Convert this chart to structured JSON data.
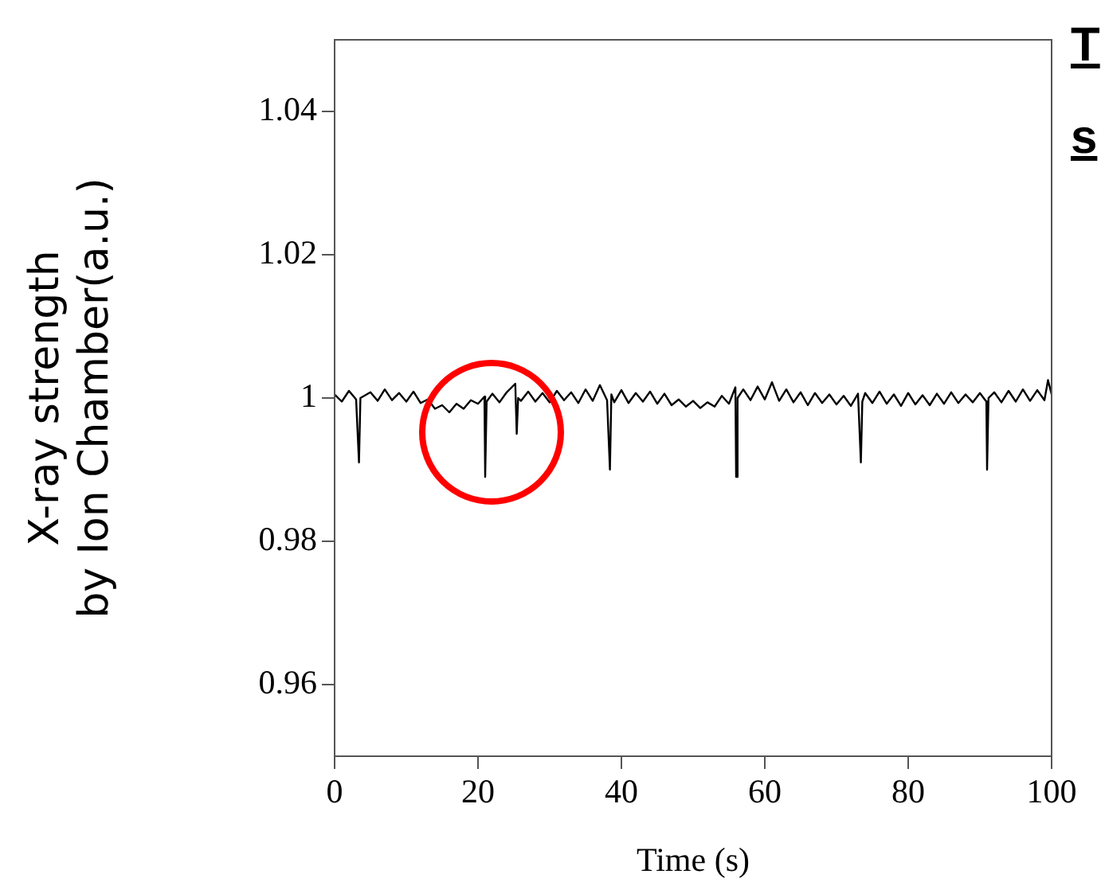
{
  "chart_data": {
    "type": "line",
    "xlabel": "Time (s)",
    "ylabel": "X-ray strength\nby Ion Chamber(a.u.)",
    "x": [
      0,
      1,
      2,
      3,
      3.4,
      3.6,
      5,
      6,
      7,
      8,
      9,
      10,
      11,
      12,
      13,
      14,
      15,
      16,
      17,
      18,
      19,
      20,
      20.9,
      21,
      21.2,
      22,
      23,
      24,
      25.2,
      25.4,
      25.6,
      26,
      27,
      28,
      29,
      30,
      31,
      32,
      33,
      34,
      35,
      36,
      37,
      38,
      38.4,
      38.6,
      39,
      40,
      41,
      42,
      43,
      44,
      45,
      46,
      47,
      48,
      49,
      50,
      51,
      52,
      53,
      54,
      55,
      55.9,
      56,
      56.2,
      57,
      58,
      59,
      60,
      61,
      62,
      63,
      64,
      65,
      66,
      67,
      68,
      69,
      70,
      71,
      72,
      73,
      73.4,
      73.6,
      74,
      75,
      76,
      77,
      78,
      79,
      80,
      81,
      82,
      83,
      84,
      85,
      86,
      87,
      88,
      89,
      90,
      90.9,
      91,
      91.2,
      92,
      93,
      94,
      95,
      96,
      97,
      98,
      99,
      99.5,
      100
    ],
    "series": [
      {
        "color": "#000000",
        "values": [
          1.0005,
          0.9995,
          1.001,
          0.9998,
          0.991,
          1.0,
          1.0008,
          0.9996,
          1.0012,
          0.9997,
          1.0007,
          0.9995,
          1.0009,
          0.9993,
          0.9998,
          0.9985,
          0.999,
          0.998,
          0.9992,
          0.9985,
          0.9997,
          0.9992,
          1.0002,
          0.989,
          0.9995,
          1.0006,
          0.9994,
          1.0008,
          1.002,
          0.995,
          1.0,
          0.9996,
          1.0009,
          0.9995,
          1.0007,
          0.9994,
          1.001,
          0.9997,
          1.0008,
          0.9993,
          1.0012,
          0.9996,
          1.0018,
          0.9997,
          0.99,
          1.0005,
          0.9994,
          1.0011,
          0.9993,
          1.0007,
          0.9995,
          1.0009,
          0.9992,
          1.0006,
          0.999,
          0.9998,
          0.9988,
          0.9996,
          0.9986,
          0.9994,
          0.9988,
          1.0003,
          0.9992,
          1.0015,
          0.989,
          1.0,
          1.0012,
          0.9997,
          1.0016,
          0.9998,
          1.0022,
          0.9996,
          1.0012,
          0.9994,
          1.0008,
          0.999,
          1.0007,
          0.9993,
          1.0005,
          0.9991,
          1.0003,
          0.9989,
          1.0006,
          0.991,
          0.9995,
          1.0007,
          0.9993,
          1.0009,
          0.9992,
          1.0005,
          0.9989,
          1.0007,
          0.9991,
          1.0004,
          0.999,
          1.0006,
          0.9992,
          1.0008,
          0.9993,
          1.0005,
          0.9994,
          1.0007,
          0.9995,
          0.99,
          1.0,
          1.0008,
          0.9994,
          1.001,
          0.9995,
          1.0012,
          0.9996,
          1.0011,
          0.9997,
          1.0025,
          1.0005
        ]
      }
    ],
    "xlim": [
      0,
      100
    ],
    "xticks": [
      0,
      20,
      40,
      60,
      80,
      100
    ],
    "ylim": [
      0.95,
      1.05
    ],
    "yticks": [
      0.96,
      0.98,
      1,
      1.02,
      1.04
    ],
    "annotations": [
      "T",
      "s"
    ]
  }
}
